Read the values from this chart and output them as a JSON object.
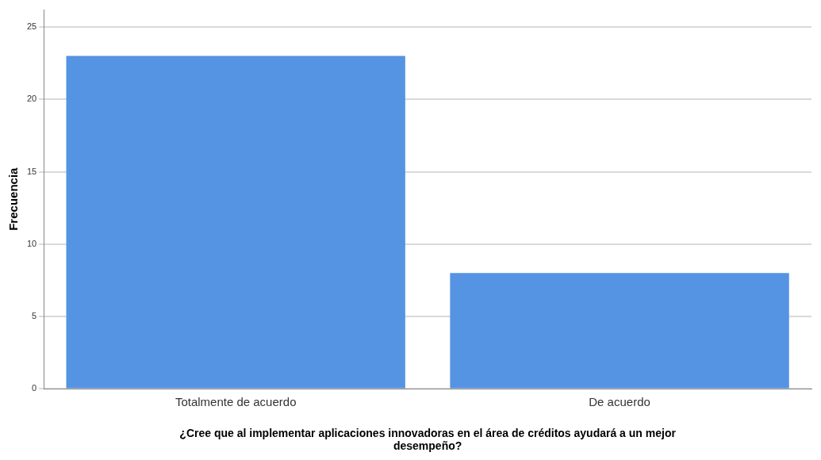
{
  "chart_data": {
    "type": "bar",
    "xlabel": "¿Cree que al implementar aplicaciones innovadoras en el área de créditos ayudará a un mejor desempeño?",
    "ylabel": "Frecuencia",
    "categories": [
      "Totalmente de acuerdo",
      "De acuerdo"
    ],
    "values": [
      23,
      8
    ],
    "color": "#5593e3",
    "ylim": [
      0,
      26.2
    ],
    "yticks": [
      0,
      5,
      10,
      15,
      20,
      25
    ],
    "grid": "y",
    "legend": false
  }
}
